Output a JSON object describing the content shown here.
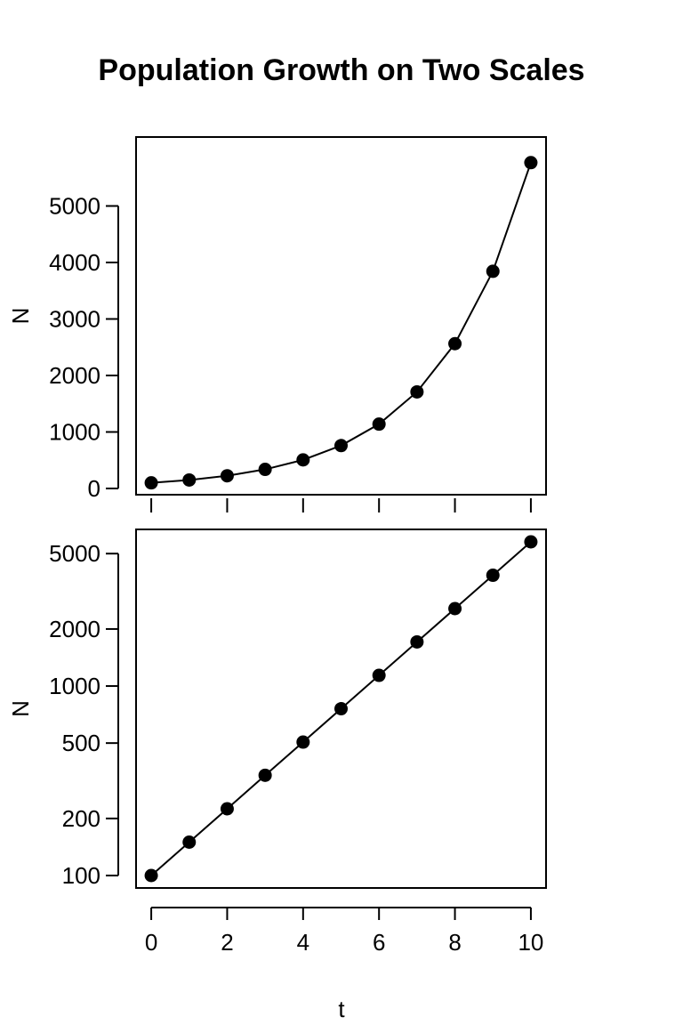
{
  "chart_data": {
    "title": "Population Growth on Two Scales",
    "xlabel": "t",
    "x": [
      0,
      1,
      2,
      3,
      4,
      5,
      6,
      7,
      8,
      9,
      10
    ],
    "x_ticks": [
      0,
      2,
      4,
      6,
      8,
      10
    ],
    "xlim": [
      -0.4,
      10.4
    ],
    "panels": [
      {
        "type": "line",
        "markers": true,
        "y_scale": "linear",
        "ylabel": "N",
        "ylim": [
          0,
          6000
        ],
        "y_ticks": [
          0,
          1000,
          2000,
          3000,
          4000,
          5000
        ],
        "values": [
          100,
          150,
          225,
          338,
          506,
          759,
          1139,
          1709,
          2563,
          3844,
          5767
        ]
      },
      {
        "type": "line",
        "markers": true,
        "y_scale": "log",
        "ylabel": "N",
        "ylim": [
          100,
          5767
        ],
        "y_ticks": [
          100,
          200,
          500,
          1000,
          2000,
          5000
        ],
        "values": [
          100,
          150,
          225,
          338,
          506,
          759,
          1139,
          1709,
          2563,
          3844,
          5767
        ]
      }
    ]
  }
}
